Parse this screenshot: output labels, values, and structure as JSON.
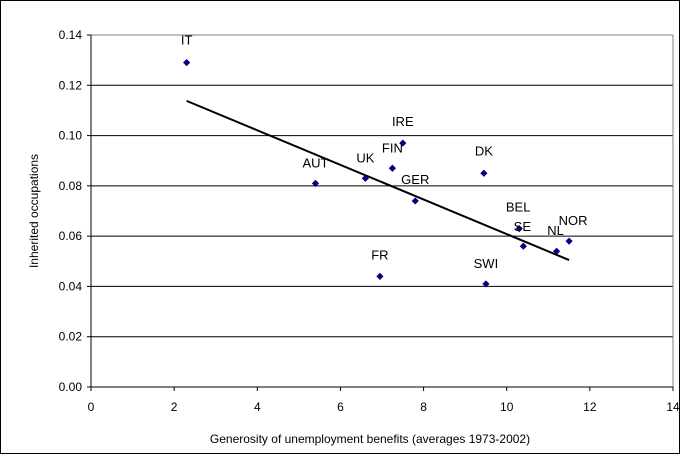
{
  "chart_data": {
    "type": "scatter",
    "title": "",
    "xlabel": "Generosity of unemployment benefits (averages 1973-2002)",
    "ylabel": "Inherited occupations",
    "xlim": [
      0,
      14
    ],
    "ylim": [
      0,
      0.14
    ],
    "x_ticks": [
      "0",
      "2",
      "4",
      "6",
      "8",
      "10",
      "12",
      "14"
    ],
    "y_ticks": [
      "0.00",
      "0.02",
      "0.04",
      "0.06",
      "0.08",
      "0.10",
      "0.12",
      "0.14"
    ],
    "grid": "horizontal",
    "legend": "none",
    "marker_color": "#000080",
    "trendline_color": "#000000",
    "points": [
      {
        "label": "IT",
        "x": 2.3,
        "y": 0.129
      },
      {
        "label": "AUT",
        "x": 5.4,
        "y": 0.081
      },
      {
        "label": "UK",
        "x": 6.6,
        "y": 0.083
      },
      {
        "label": "FR",
        "x": 6.95,
        "y": 0.044
      },
      {
        "label": "FIN",
        "x": 7.25,
        "y": 0.087
      },
      {
        "label": "IRE",
        "x": 7.5,
        "y": 0.097
      },
      {
        "label": "GER",
        "x": 7.8,
        "y": 0.074
      },
      {
        "label": "DK",
        "x": 9.45,
        "y": 0.085
      },
      {
        "label": "SWI",
        "x": 9.5,
        "y": 0.041
      },
      {
        "label": "BEL",
        "x": 10.3,
        "y": 0.063
      },
      {
        "label": "SE",
        "x": 10.4,
        "y": 0.056
      },
      {
        "label": "NL",
        "x": 11.2,
        "y": 0.054
      },
      {
        "label": "NOR",
        "x": 11.5,
        "y": 0.058
      }
    ],
    "trendline": {
      "x": [
        2.3,
        11.5
      ],
      "y": [
        0.1138,
        0.0505
      ]
    }
  }
}
